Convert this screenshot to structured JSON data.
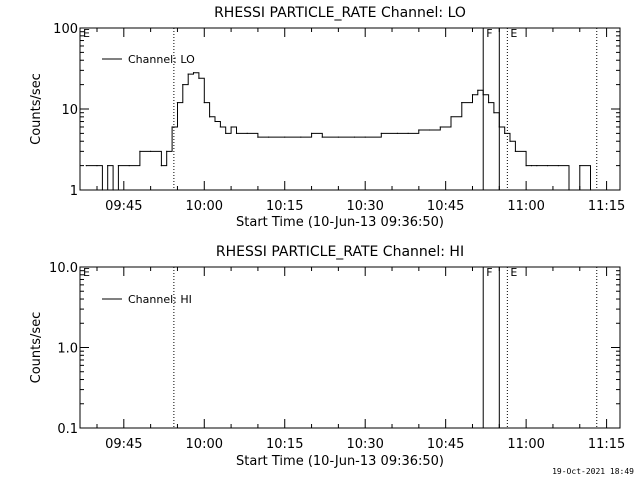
{
  "footer": {
    "timestamp": "19-Oct-2021 18:49"
  },
  "chart_data": [
    {
      "type": "line",
      "title": "RHESSI PARTICLE_RATE Channel: LO",
      "xlabel": "Start Time (10-Jun-13 09:36:50)",
      "ylabel": "Counts/sec",
      "yscale": "log",
      "ylim": [
        1,
        100
      ],
      "xlim": [
        "09:36:50",
        "11:17:30"
      ],
      "yticks": [
        "1",
        "10",
        "100"
      ],
      "xticks": [
        "09:45",
        "10:00",
        "10:15",
        "10:30",
        "10:45",
        "11:00",
        "11:15"
      ],
      "legend": {
        "entries": [
          "Channel: LO"
        ],
        "position": "top-left"
      },
      "markers": [
        {
          "label": "E",
          "time": "09:36:50",
          "style": "dotted"
        },
        {
          "label": "",
          "time": "09:54:20",
          "style": "dotted"
        },
        {
          "label": "F",
          "time": "10:52:00",
          "style": "solid"
        },
        {
          "label": "",
          "time": "10:55:00",
          "style": "solid"
        },
        {
          "label": "E",
          "time": "10:56:30",
          "style": "dotted"
        },
        {
          "label": "",
          "time": "11:13:10",
          "style": "dotted"
        }
      ],
      "series": [
        {
          "name": "Channel: LO",
          "x": [
            "09:38:00",
            "09:40:00",
            "09:41:00",
            "09:42:00",
            "09:43:00",
            "09:44:00",
            "09:46:00",
            "09:48:00",
            "09:50:00",
            "09:52:00",
            "09:53:00",
            "09:54:00",
            "09:55:00",
            "09:56:00",
            "09:57:00",
            "09:58:00",
            "09:59:00",
            "10:00:00",
            "10:01:00",
            "10:02:00",
            "10:03:00",
            "10:04:00",
            "10:05:00",
            "10:06:00",
            "10:08:00",
            "10:10:00",
            "10:12:00",
            "10:15:00",
            "10:18:00",
            "10:20:00",
            "10:22:00",
            "10:25:00",
            "10:28:00",
            "10:30:00",
            "10:33:00",
            "10:36:00",
            "10:38:00",
            "10:40:00",
            "10:42:00",
            "10:44:00",
            "10:46:00",
            "10:48:00",
            "10:50:00",
            "10:51:00",
            "10:52:00",
            "10:53:00",
            "10:54:00",
            "10:55:00",
            "10:56:00",
            "10:57:00",
            "10:58:00",
            "11:00:00",
            "11:01:00",
            "11:02:00",
            "11:04:00",
            "11:06:00",
            "11:08:00",
            "11:10:00",
            "11:12:00"
          ],
          "values": [
            2,
            2,
            1,
            2,
            1,
            2,
            2,
            3,
            3,
            2,
            3,
            6,
            12,
            20,
            27,
            28,
            24,
            12,
            8,
            7,
            6,
            5,
            6,
            5,
            5,
            4.5,
            4.5,
            4.5,
            4.5,
            5,
            4.5,
            4.5,
            4.5,
            4.5,
            5,
            5,
            5,
            5.5,
            5.5,
            6,
            8,
            12,
            15,
            17,
            15,
            12,
            9,
            6,
            5,
            4,
            3,
            2,
            2,
            2,
            2,
            2,
            1,
            2,
            1
          ]
        }
      ]
    },
    {
      "type": "line",
      "title": "RHESSI PARTICLE_RATE Channel: HI",
      "xlabel": "Start Time (10-Jun-13 09:36:50)",
      "ylabel": "Counts/sec",
      "yscale": "log",
      "ylim": [
        0.1,
        10
      ],
      "xlim": [
        "09:36:50",
        "11:17:30"
      ],
      "yticks": [
        "0.1",
        "1.0",
        "10.0"
      ],
      "xticks": [
        "09:45",
        "10:00",
        "10:15",
        "10:30",
        "10:45",
        "11:00",
        "11:15"
      ],
      "legend": {
        "entries": [
          "Channel: HI"
        ],
        "position": "top-left"
      },
      "markers": [
        {
          "label": "E",
          "time": "09:36:50",
          "style": "dotted"
        },
        {
          "label": "",
          "time": "09:54:20",
          "style": "dotted"
        },
        {
          "label": "F",
          "time": "10:52:00",
          "style": "solid"
        },
        {
          "label": "",
          "time": "10:55:00",
          "style": "solid"
        },
        {
          "label": "E",
          "time": "10:56:30",
          "style": "dotted"
        },
        {
          "label": "",
          "time": "11:13:10",
          "style": "dotted"
        }
      ],
      "series": [
        {
          "name": "Channel: HI",
          "x": [],
          "values": []
        }
      ]
    }
  ]
}
